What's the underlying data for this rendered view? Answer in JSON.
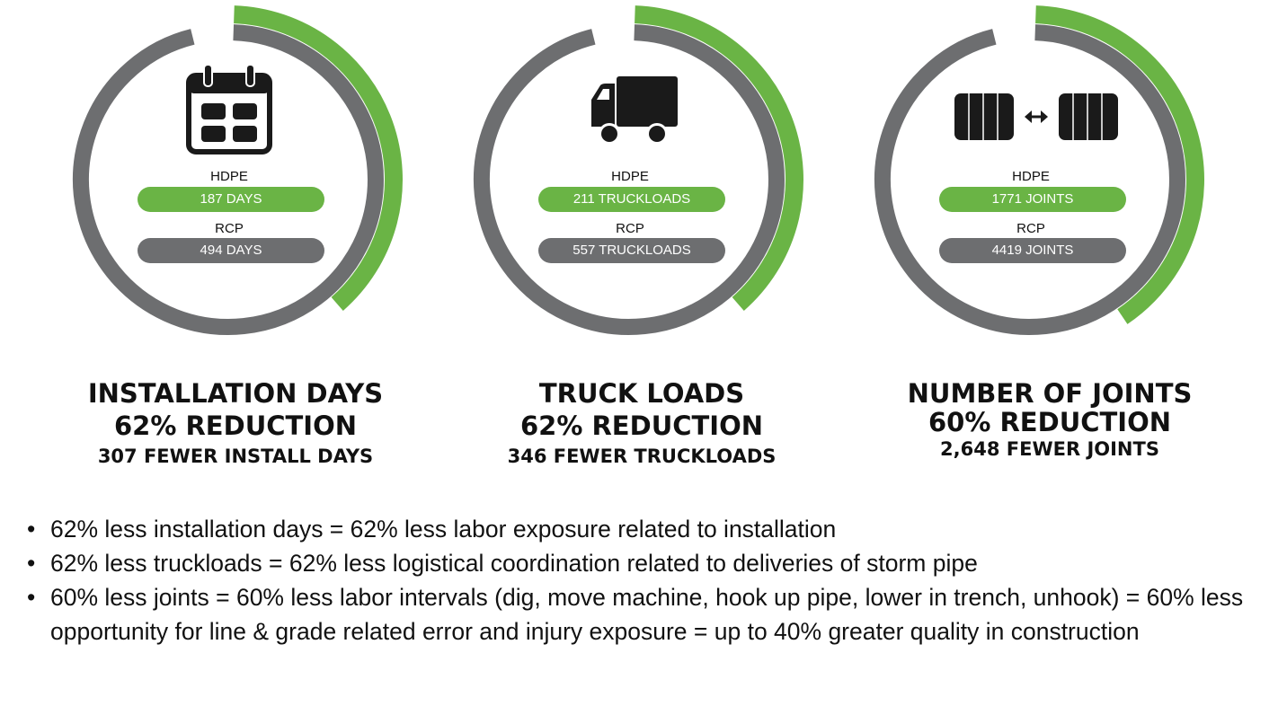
{
  "colors": {
    "green": "#6ab445",
    "gray": "#6d6e70",
    "icon": "#1a1a1a"
  },
  "gauges": [
    {
      "icon": "calendar-icon",
      "hdpe_label": "HDPE",
      "hdpe_value": "187 DAYS",
      "rcp_label": "RCP",
      "rcp_value": "494 DAYS",
      "hdpe_fraction": 0.38,
      "title": "INSTALLATION DAYS",
      "reduction": "62% REDUCTION",
      "subtitle": "307 FEWER INSTALL DAYS"
    },
    {
      "icon": "truck-icon",
      "hdpe_label": "HDPE",
      "hdpe_value": "211 TRUCKLOADS",
      "rcp_label": "RCP",
      "rcp_value": "557 TRUCKLOADS",
      "hdpe_fraction": 0.38,
      "title": "TRUCK LOADS",
      "reduction": "62% REDUCTION",
      "subtitle": "346 FEWER TRUCKLOADS"
    },
    {
      "icon": "pipe-joints-icon",
      "hdpe_label": "HDPE",
      "hdpe_value": "1771 JOINTS",
      "rcp_label": "RCP",
      "rcp_value": "4419 JOINTS",
      "hdpe_fraction": 0.4,
      "title": "NUMBER OF JOINTS",
      "reduction": "60% REDUCTION",
      "subtitle": "2,648 FEWER JOINTS"
    }
  ],
  "bullets": [
    "62% less installation days = 62% less labor exposure related to installation",
    "62% less truckloads = 62% less logistical coordination related to deliveries of storm pipe",
    "60% less joints = 60% less labor intervals (dig, move machine, hook up pipe, lower in trench, unhook) = 60% less opportunity for line & grade related error and injury exposure = up to 40% greater quality in construction"
  ],
  "bullet_symbol": "•"
}
